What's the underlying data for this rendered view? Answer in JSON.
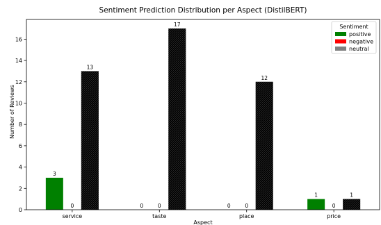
{
  "chart_data": {
    "type": "bar",
    "title": "Sentiment Prediction Distribution per Aspect (DistilBERT)",
    "xlabel": "Aspect",
    "ylabel": "Number of Reviews",
    "categories": [
      "service",
      "taste",
      "place",
      "price"
    ],
    "series": [
      {
        "name": "positive",
        "color": "#008000",
        "values": [
          3,
          0,
          0,
          1
        ]
      },
      {
        "name": "negative",
        "color": "#ff0000",
        "values": [
          0,
          0,
          0,
          0
        ]
      },
      {
        "name": "neutral",
        "color": "#808080",
        "values": [
          13,
          17,
          12,
          1
        ]
      }
    ],
    "ylim": [
      0,
      17.85
    ],
    "yticks": [
      0,
      2,
      4,
      6,
      8,
      10,
      12,
      14,
      16
    ],
    "legend": {
      "title": "Sentiment",
      "position": "top-right"
    },
    "grid": false
  }
}
